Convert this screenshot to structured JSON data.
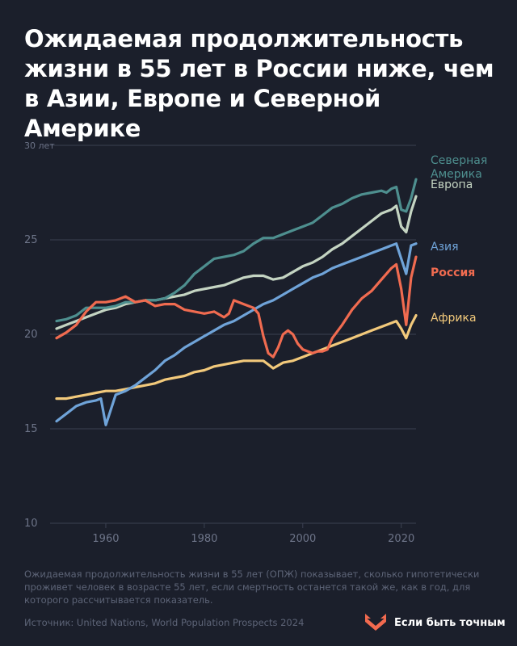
{
  "title": "Ожидаемая продолжительность жизни в 55 лет в России ниже, чем в Азии, Европе и Северной Америке",
  "footnote": "Ожидаемая продолжительность жизни в 55 лет (ОПЖ) показывает, сколько гипотетически проживет человек в возрасте 55 лет, если смертность останется такой же, как в год, для которого рассчитывается показатель.",
  "source": "Источник: United Nations, World Population Prospects 2024",
  "brand": {
    "name": "Если быть точным",
    "icon": "heart-chevron-icon",
    "color": "#f26a4f"
  },
  "chart_data": {
    "type": "line",
    "xlim": [
      1950,
      2023
    ],
    "ylim": [
      10,
      30
    ],
    "x_ticks": [
      1960,
      1980,
      2000,
      2020
    ],
    "y_ticks": [
      10,
      15,
      20,
      25,
      30
    ],
    "y_tick_labels": [
      "10",
      "15",
      "20",
      "25",
      "30 лет"
    ],
    "grid": "horizontal",
    "legend": "right-side labels",
    "series": [
      {
        "name": "Северная Америка",
        "label_lines": [
          "Северная",
          "Америка"
        ],
        "color": "#4e8f8f",
        "bold": false,
        "x": [
          1950,
          1952,
          1954,
          1956,
          1958,
          1960,
          1962,
          1964,
          1966,
          1968,
          1970,
          1972,
          1974,
          1976,
          1978,
          1980,
          1982,
          1984,
          1986,
          1988,
          1990,
          1992,
          1994,
          1996,
          1998,
          2000,
          2002,
          2004,
          2006,
          2008,
          2010,
          2012,
          2014,
          2016,
          2017,
          2018,
          2019,
          2020,
          2021,
          2022,
          2023
        ],
        "y": [
          20.7,
          20.8,
          21.0,
          21.4,
          21.4,
          21.4,
          21.5,
          21.7,
          21.7,
          21.8,
          21.8,
          21.9,
          22.2,
          22.6,
          23.2,
          23.6,
          24.0,
          24.1,
          24.2,
          24.4,
          24.8,
          25.1,
          25.1,
          25.3,
          25.5,
          25.7,
          25.9,
          26.3,
          26.7,
          26.9,
          27.2,
          27.4,
          27.5,
          27.6,
          27.5,
          27.7,
          27.8,
          26.6,
          26.5,
          27.2,
          28.2
        ]
      },
      {
        "name": "Европа",
        "label_lines": [
          "Европа"
        ],
        "color": "#c4d4c2",
        "bold": false,
        "x": [
          1950,
          1952,
          1954,
          1956,
          1958,
          1960,
          1962,
          1964,
          1966,
          1968,
          1970,
          1972,
          1974,
          1976,
          1978,
          1980,
          1982,
          1984,
          1986,
          1988,
          1990,
          1992,
          1994,
          1996,
          1998,
          2000,
          2002,
          2004,
          2006,
          2008,
          2010,
          2012,
          2014,
          2016,
          2017,
          2018,
          2019,
          2020,
          2021,
          2022,
          2023
        ],
        "y": [
          20.3,
          20.5,
          20.7,
          20.9,
          21.1,
          21.3,
          21.4,
          21.6,
          21.7,
          21.8,
          21.8,
          21.9,
          22.0,
          22.1,
          22.3,
          22.4,
          22.5,
          22.6,
          22.8,
          23.0,
          23.1,
          23.1,
          22.9,
          23.0,
          23.3,
          23.6,
          23.8,
          24.1,
          24.5,
          24.8,
          25.2,
          25.6,
          26.0,
          26.4,
          26.5,
          26.6,
          26.8,
          25.7,
          25.4,
          26.5,
          27.3
        ]
      },
      {
        "name": "Азия",
        "label_lines": [
          "Азия"
        ],
        "color": "#6fa3d8",
        "bold": false,
        "x": [
          1950,
          1952,
          1954,
          1956,
          1958,
          1959,
          1960,
          1961,
          1962,
          1964,
          1966,
          1968,
          1970,
          1972,
          1974,
          1976,
          1978,
          1980,
          1982,
          1984,
          1986,
          1988,
          1990,
          1992,
          1994,
          1996,
          1998,
          2000,
          2002,
          2004,
          2006,
          2008,
          2010,
          2012,
          2014,
          2016,
          2018,
          2019,
          2020,
          2021,
          2022,
          2023
        ],
        "y": [
          15.4,
          15.8,
          16.2,
          16.4,
          16.5,
          16.6,
          15.2,
          16.0,
          16.8,
          17.0,
          17.3,
          17.7,
          18.1,
          18.6,
          18.9,
          19.3,
          19.6,
          19.9,
          20.2,
          20.5,
          20.7,
          21.0,
          21.3,
          21.6,
          21.8,
          22.1,
          22.4,
          22.7,
          23.0,
          23.2,
          23.5,
          23.7,
          23.9,
          24.1,
          24.3,
          24.5,
          24.7,
          24.8,
          24.0,
          23.2,
          24.7,
          24.8
        ]
      },
      {
        "name": "Россия",
        "label_lines": [
          "Россия"
        ],
        "color": "#f06b50",
        "bold": true,
        "x": [
          1950,
          1952,
          1954,
          1956,
          1958,
          1960,
          1962,
          1964,
          1966,
          1968,
          1970,
          1972,
          1974,
          1976,
          1978,
          1980,
          1982,
          1984,
          1985,
          1986,
          1987,
          1988,
          1990,
          1991,
          1992,
          1993,
          1994,
          1995,
          1996,
          1997,
          1998,
          1999,
          2000,
          2002,
          2003,
          2004,
          2005,
          2006,
          2008,
          2010,
          2012,
          2014,
          2016,
          2018,
          2019,
          2020,
          2021,
          2022,
          2023
        ],
        "y": [
          19.8,
          20.1,
          20.5,
          21.2,
          21.7,
          21.7,
          21.8,
          22.0,
          21.7,
          21.8,
          21.5,
          21.6,
          21.6,
          21.3,
          21.2,
          21.1,
          21.2,
          20.9,
          21.1,
          21.8,
          21.7,
          21.6,
          21.4,
          21.1,
          19.9,
          19.0,
          18.8,
          19.3,
          20.0,
          20.2,
          20.0,
          19.5,
          19.2,
          19.0,
          19.1,
          19.1,
          19.2,
          19.8,
          20.5,
          21.3,
          21.9,
          22.3,
          22.9,
          23.5,
          23.7,
          22.4,
          20.5,
          23.0,
          24.1
        ]
      },
      {
        "name": "Африка",
        "label_lines": [
          "Африка"
        ],
        "color": "#f2c97b",
        "bold": false,
        "x": [
          1950,
          1952,
          1954,
          1956,
          1958,
          1960,
          1962,
          1964,
          1966,
          1968,
          1970,
          1972,
          1974,
          1976,
          1978,
          1980,
          1982,
          1984,
          1986,
          1988,
          1990,
          1992,
          1993,
          1994,
          1996,
          1998,
          2000,
          2002,
          2004,
          2006,
          2008,
          2010,
          2012,
          2014,
          2016,
          2018,
          2019,
          2020,
          2021,
          2022,
          2023
        ],
        "y": [
          16.6,
          16.6,
          16.7,
          16.8,
          16.9,
          17.0,
          17.0,
          17.1,
          17.2,
          17.3,
          17.4,
          17.6,
          17.7,
          17.8,
          18.0,
          18.1,
          18.3,
          18.4,
          18.5,
          18.6,
          18.6,
          18.6,
          18.4,
          18.2,
          18.5,
          18.6,
          18.8,
          19.0,
          19.2,
          19.4,
          19.6,
          19.8,
          20.0,
          20.2,
          20.4,
          20.6,
          20.7,
          20.3,
          19.8,
          20.5,
          21.0
        ]
      }
    ]
  }
}
